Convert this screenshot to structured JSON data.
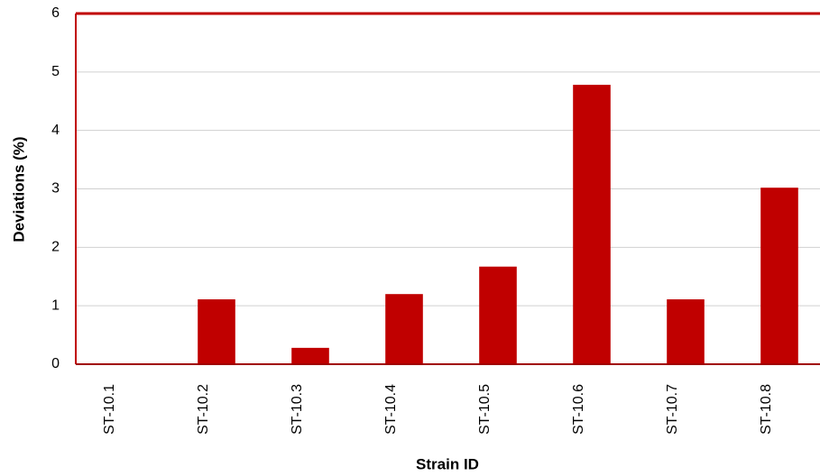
{
  "chart_data": {
    "type": "bar",
    "x_label": "Strain ID",
    "y_label": "Deviations (%)",
    "categories": [
      "ST-10.1",
      "ST-10.2",
      "ST-10.3",
      "ST-10.4",
      "ST-10.5",
      "ST-10.6",
      "ST-10.7",
      "ST-10.8"
    ],
    "values": [
      0,
      1.11,
      0.28,
      1.2,
      1.67,
      4.78,
      1.11,
      3.02
    ],
    "color": "#c00000",
    "ylim": [
      0,
      6
    ],
    "yticks": [
      0,
      1,
      2,
      3,
      4,
      5,
      6
    ],
    "grid": true
  }
}
